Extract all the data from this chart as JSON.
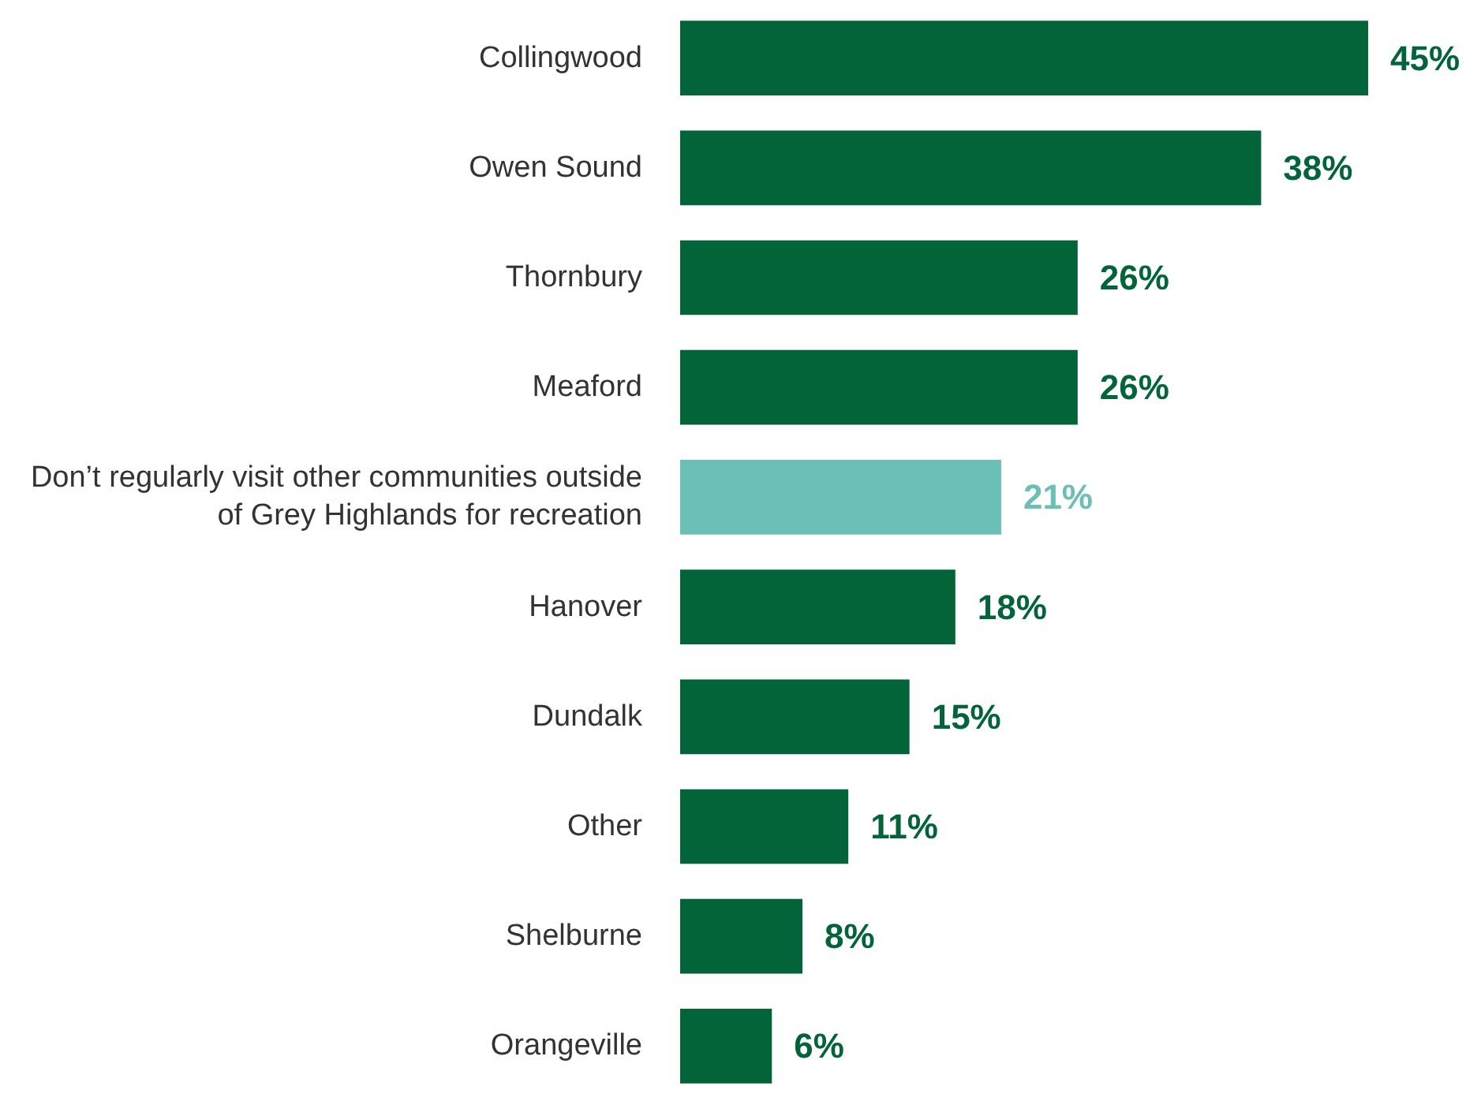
{
  "chart_data": {
    "type": "bar",
    "orientation": "horizontal",
    "categories": [
      "Collingwood",
      "Owen Sound",
      "Thornbury",
      "Meaford",
      "Don’t regularly visit other communities outside\nof Grey Highlands for recreation",
      "Hanover",
      "Dundalk",
      "Other",
      "Shelburne",
      "Orangeville"
    ],
    "values": [
      45,
      38,
      26,
      26,
      21,
      18,
      15,
      11,
      8,
      6
    ],
    "value_labels": [
      "45%",
      "38%",
      "26%",
      "26%",
      "21%",
      "18%",
      "15%",
      "11%",
      "8%",
      "6%"
    ],
    "colors": [
      "#03643a",
      "#03643a",
      "#03643a",
      "#03643a",
      "#6bbfb4",
      "#03643a",
      "#03643a",
      "#03643a",
      "#03643a",
      "#03643a"
    ],
    "tick_labels": "y",
    "grid": false
  }
}
